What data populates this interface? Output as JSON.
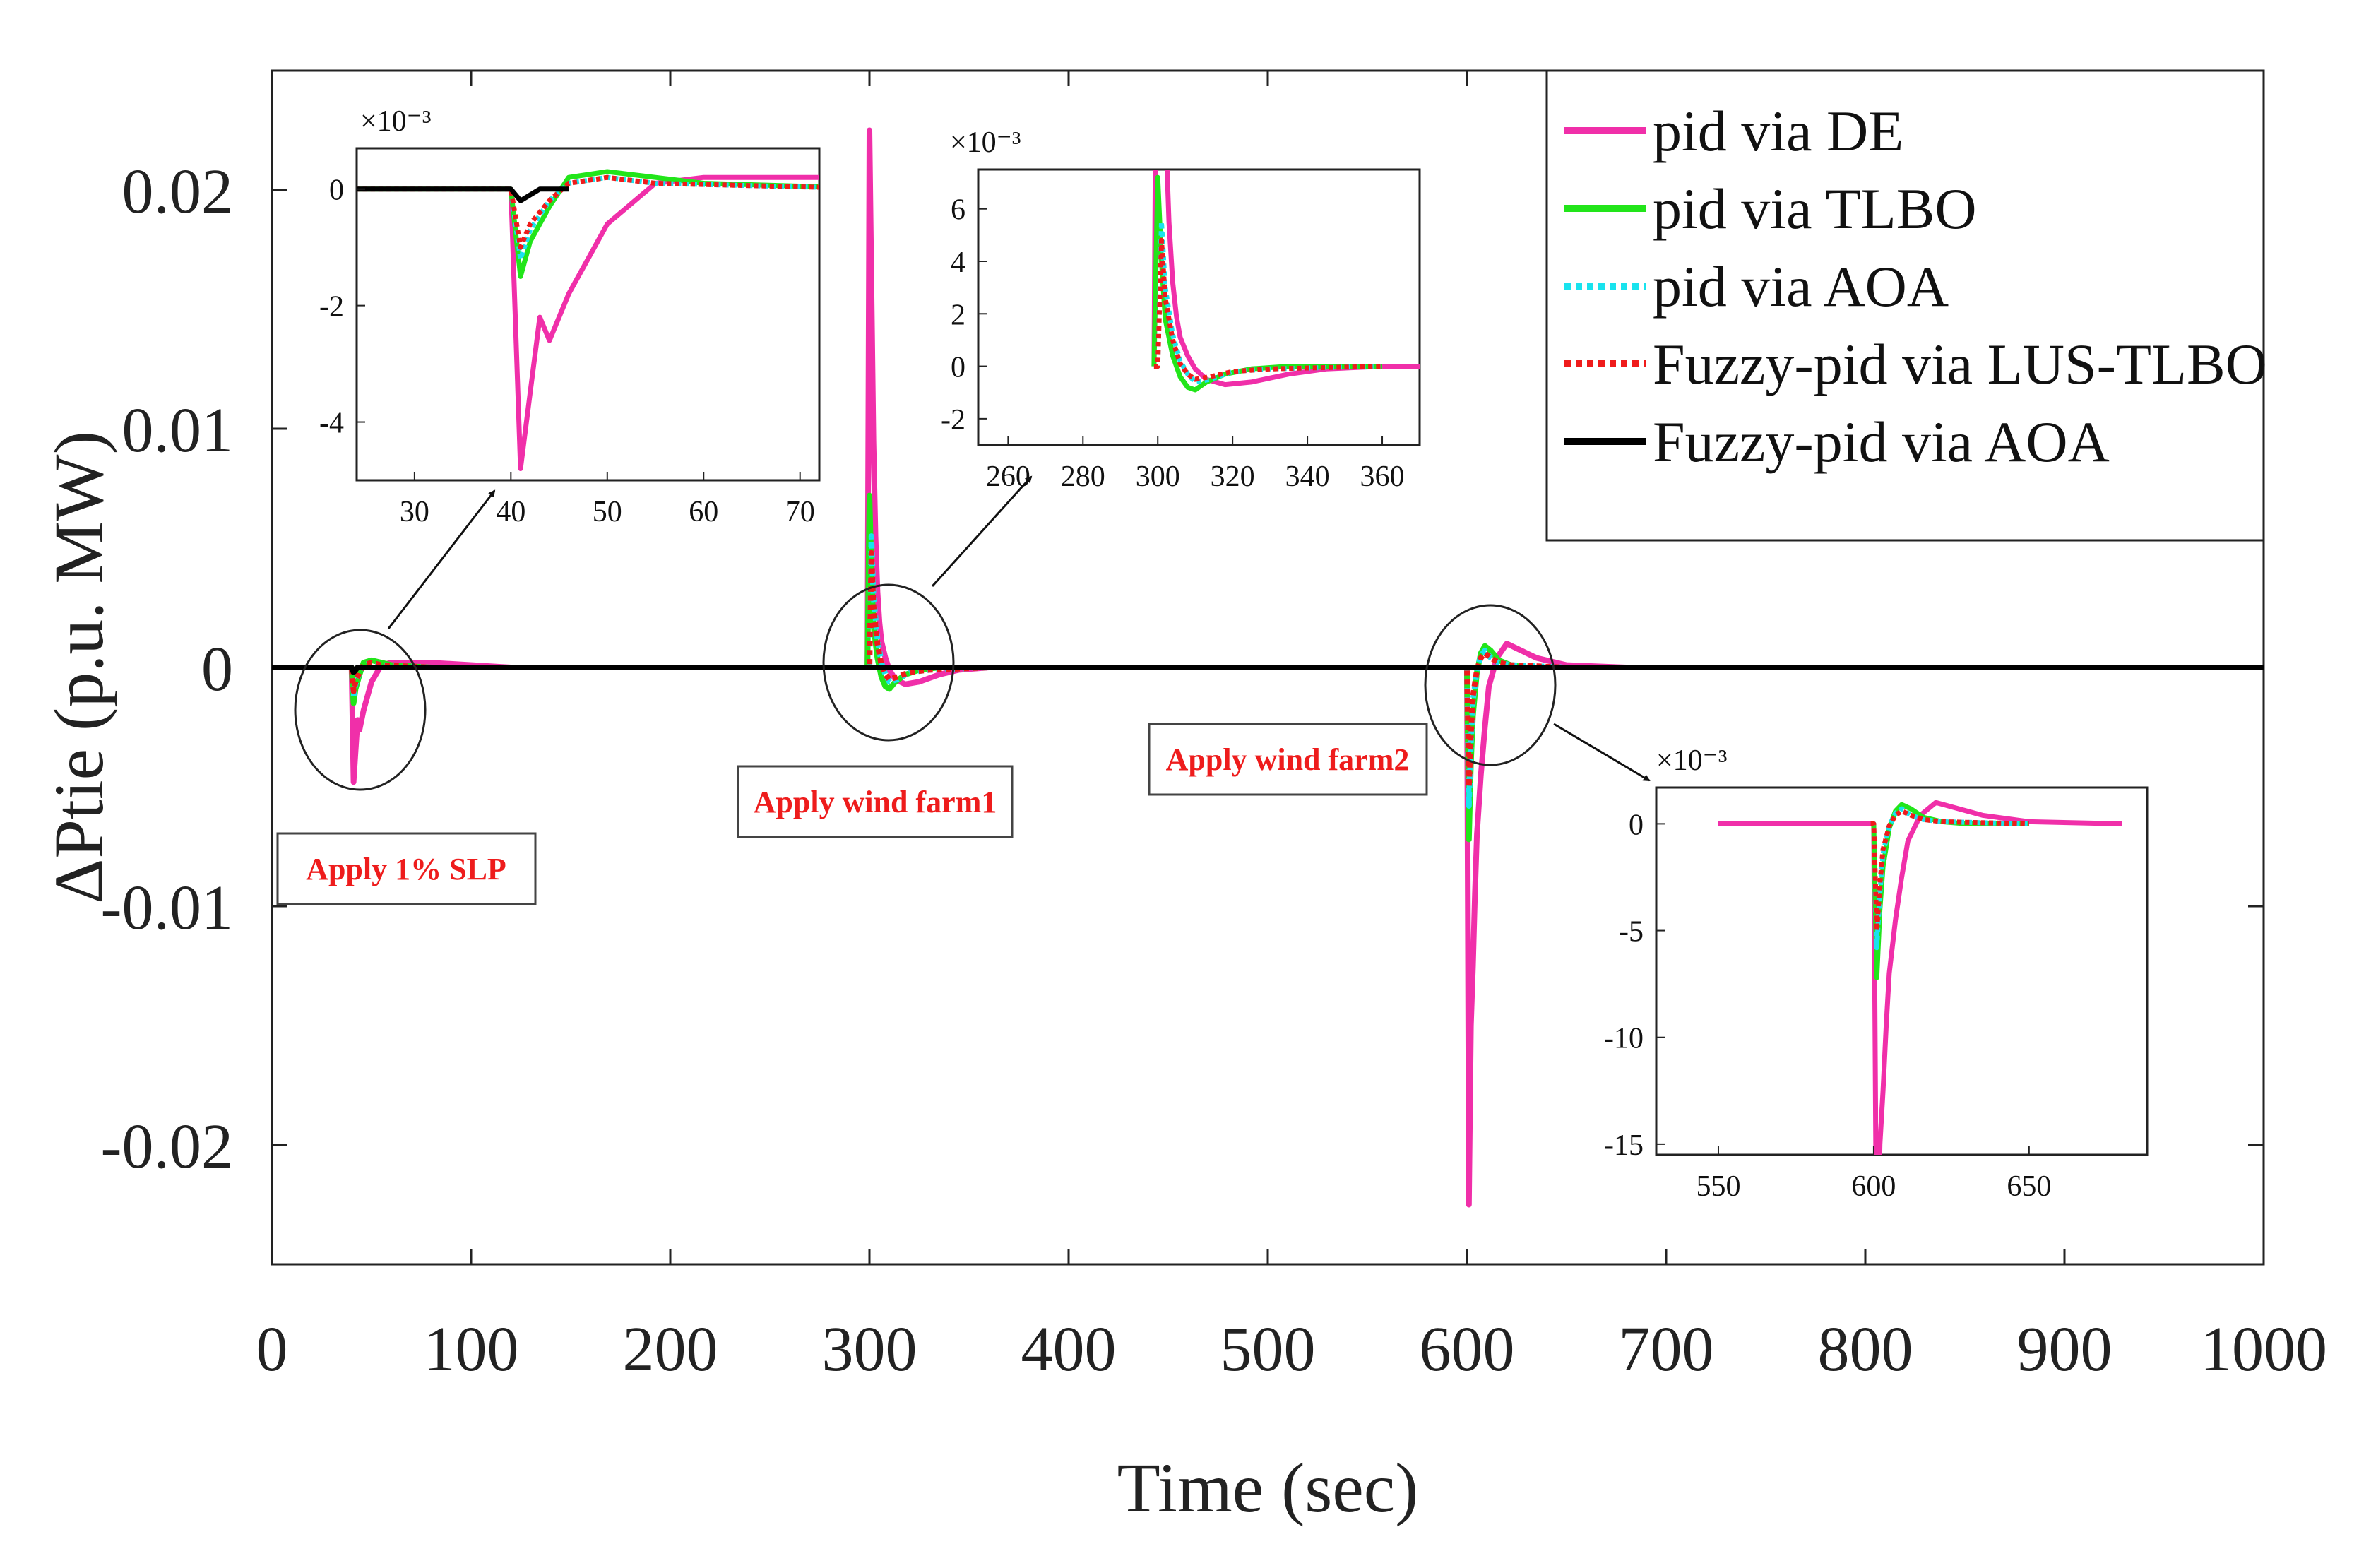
{
  "chart_data": {
    "type": "line",
    "title": "",
    "xlabel": "Time (sec)",
    "ylabel": "ΔPtie (p.u. MW)",
    "xlim": [
      0,
      1000
    ],
    "ylim": [
      -0.025,
      0.025
    ],
    "xticks": [
      0,
      100,
      200,
      300,
      400,
      500,
      600,
      700,
      800,
      900,
      1000
    ],
    "xtick_labels": [
      "0",
      "100",
      "200",
      "300",
      "400",
      "500",
      "600",
      "700",
      "800",
      "900",
      "1000"
    ],
    "yticks": [
      0.02,
      0.01,
      0,
      -0.01,
      -0.02
    ],
    "ytick_labels": [
      "0.02",
      "0.01",
      "0",
      "-0.01",
      "-0.02"
    ],
    "legend_position": "top-right",
    "series": [
      {
        "name": "pid via DE",
        "color": "#f02fa9",
        "style": "solid",
        "x": [
          0,
          40,
          41,
          42,
          43,
          44,
          46,
          50,
          55,
          60,
          80,
          120,
          200,
          299,
          300,
          301,
          302,
          303,
          304,
          305,
          306,
          308,
          310,
          313,
          318,
          325,
          335,
          345,
          360,
          380,
          450,
          550,
          599,
          600,
          601,
          602,
          603,
          604,
          605,
          607,
          609,
          611,
          615,
          620,
          625,
          635,
          650,
          680,
          750,
          850,
          1000
        ],
        "y": [
          0,
          0,
          -0.0048,
          -0.0035,
          -0.0022,
          -0.0026,
          -0.0018,
          -0.0006,
          0.0001,
          0.0002,
          0.0002,
          0,
          0,
          0,
          0.0225,
          0.016,
          0.0095,
          0.0055,
          0.0032,
          0.0019,
          0.0011,
          0.0004,
          -0.0001,
          -0.0005,
          -0.0007,
          -0.0006,
          -0.0003,
          -0.0001,
          0,
          0,
          0,
          0,
          0,
          0,
          -0.0225,
          -0.015,
          -0.0125,
          -0.0095,
          -0.007,
          -0.0045,
          -0.0025,
          -0.0008,
          0.0004,
          0.001,
          0.0008,
          0.0004,
          0.0001,
          0,
          0,
          0,
          0
        ]
      },
      {
        "name": "pid via TLBO",
        "color": "#22e51a",
        "style": "solid",
        "x": [
          0,
          40,
          41,
          42,
          44,
          46,
          50,
          55,
          60,
          80,
          299,
          300,
          301,
          302,
          304,
          306,
          308,
          310,
          313,
          318,
          325,
          335,
          360,
          599,
          600,
          601,
          602,
          603,
          605,
          607,
          609,
          612,
          616,
          622,
          630,
          650,
          1000
        ],
        "y": [
          0,
          0,
          -0.0015,
          -0.0009,
          -0.0003,
          0.0002,
          0.0003,
          0.0002,
          0.0001,
          0,
          0,
          0.0072,
          0.004,
          0.0018,
          0.0004,
          -0.0004,
          -0.0008,
          -0.0009,
          -0.0006,
          -0.0003,
          -0.0001,
          0,
          0,
          0,
          0,
          -0.0072,
          -0.004,
          -0.002,
          -0.0002,
          0.0006,
          0.0009,
          0.0007,
          0.0003,
          0.0001,
          0,
          0,
          0
        ]
      },
      {
        "name": "pid via AOA",
        "color": "#19e3ee",
        "style": "dotted",
        "x": [
          0,
          40,
          41,
          42,
          44,
          46,
          50,
          55,
          80,
          299,
          300,
          301,
          302,
          304,
          306,
          308,
          310,
          314,
          320,
          330,
          360,
          599,
          600,
          601,
          602,
          603,
          605,
          607,
          609,
          612,
          616,
          622,
          650,
          1000
        ],
        "y": [
          0,
          0,
          -0.0012,
          -0.0007,
          -0.0002,
          0.0001,
          0.0002,
          0.0001,
          0,
          0,
          0,
          0.0055,
          0.003,
          0.0012,
          0.0002,
          -0.0003,
          -0.0006,
          -0.0005,
          -0.0002,
          -0.0001,
          0,
          0,
          0,
          -0.0058,
          -0.0032,
          -0.0014,
          -0.0001,
          0.0005,
          0.0007,
          0.0004,
          0.0002,
          0.0001,
          0,
          0
        ]
      },
      {
        "name": "Fuzzy-pid via LUS-TLBO",
        "color": "#ef1b1b",
        "style": "dotted",
        "x": [
          0,
          40,
          41,
          42,
          44,
          46,
          50,
          55,
          80,
          299,
          300,
          301,
          302,
          304,
          306,
          308,
          310,
          314,
          320,
          330,
          360,
          599,
          600,
          601,
          602,
          603,
          605,
          607,
          609,
          612,
          616,
          622,
          650,
          1000
        ],
        "y": [
          0,
          0,
          -0.001,
          -0.0006,
          -0.0002,
          0.0001,
          0.0002,
          0.0001,
          0,
          0,
          0,
          0.0048,
          0.0026,
          0.001,
          0.0001,
          -0.0003,
          -0.0005,
          -0.0004,
          -0.0002,
          -0.0001,
          0,
          0,
          0,
          -0.005,
          -0.0028,
          -0.0012,
          -0.0001,
          0.0004,
          0.0006,
          0.0004,
          0.0002,
          0.0001,
          0,
          0
        ]
      },
      {
        "name": "Fuzzy-pid via AOA",
        "color": "#000000",
        "style": "solid",
        "x": [
          0,
          40,
          41,
          42,
          43,
          44,
          46,
          1000
        ],
        "y": [
          0,
          0,
          -0.0002,
          -0.0001,
          0,
          0,
          0,
          0
        ]
      }
    ],
    "insets": [
      {
        "xticks": [
          30,
          40,
          50,
          60,
          70
        ],
        "xtick_labels": [
          "30",
          "40",
          "50",
          "60",
          "70"
        ],
        "yticks": [
          0,
          -2,
          -4
        ],
        "ytick_labels": [
          "0",
          "-2",
          "-4"
        ],
        "exponent": "×10⁻³"
      },
      {
        "xticks": [
          260,
          280,
          300,
          320,
          340,
          360
        ],
        "xtick_labels": [
          "260",
          "280",
          "300",
          "320",
          "340",
          "360"
        ],
        "yticks": [
          6,
          4,
          2,
          0,
          -2
        ],
        "ytick_labels": [
          "6",
          "4",
          "2",
          "0",
          "-2"
        ],
        "exponent": "×10⁻³"
      },
      {
        "xticks": [
          550,
          600,
          650
        ],
        "xtick_labels": [
          "550",
          "600",
          "650"
        ],
        "yticks": [
          0,
          -5,
          -10,
          -15
        ],
        "ytick_labels": [
          "0",
          "-5",
          "-10",
          "-15"
        ],
        "exponent": "×10⁻³"
      }
    ],
    "annotations": [
      "Apply 1% SLP",
      "Apply wind farm1",
      "Apply wind farm2"
    ]
  }
}
